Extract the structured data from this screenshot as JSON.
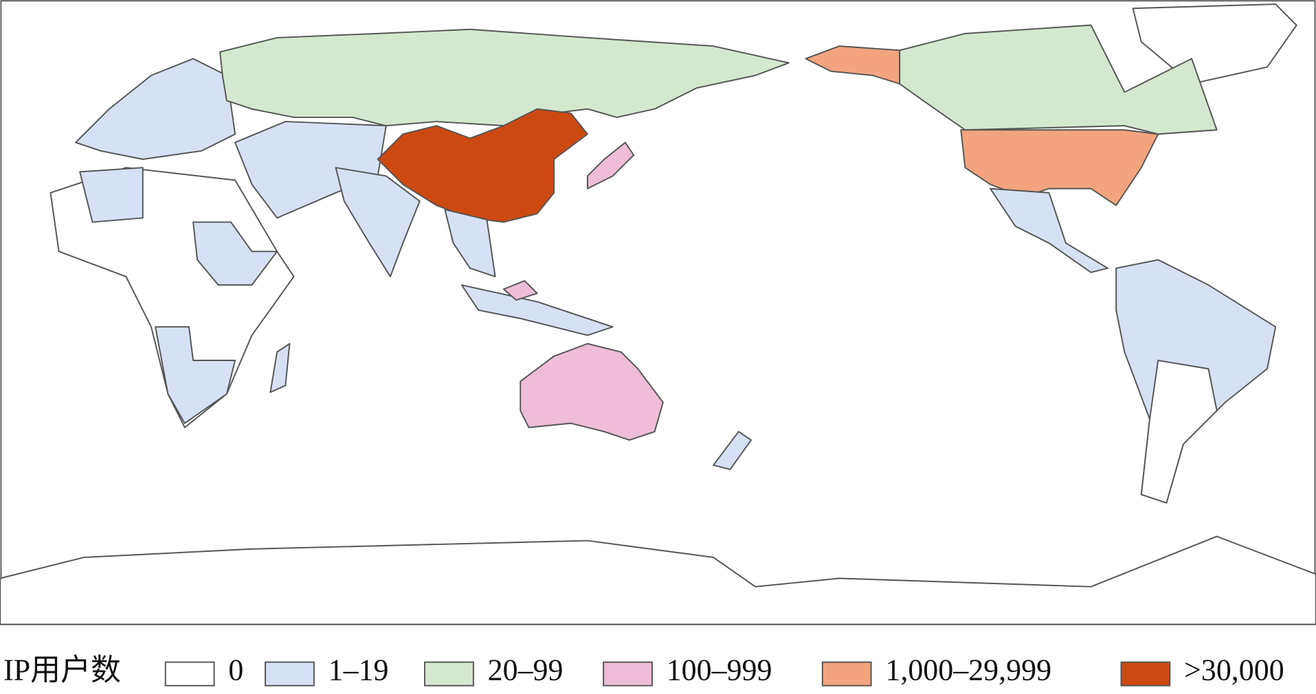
{
  "legend": {
    "title": "IP用户数",
    "items": [
      {
        "label": "0",
        "color": "#ffffff"
      },
      {
        "label": "1–19",
        "color": "#d6e1f6"
      },
      {
        "label": "20–99",
        "color": "#d4e8cf"
      },
      {
        "label": "100–999",
        "color": "#efbdd7"
      },
      {
        "label": "1,000–29,999",
        "color": "#f3a47f"
      },
      {
        "label": ">30,000",
        "color": "#cd4912"
      }
    ]
  }
}
